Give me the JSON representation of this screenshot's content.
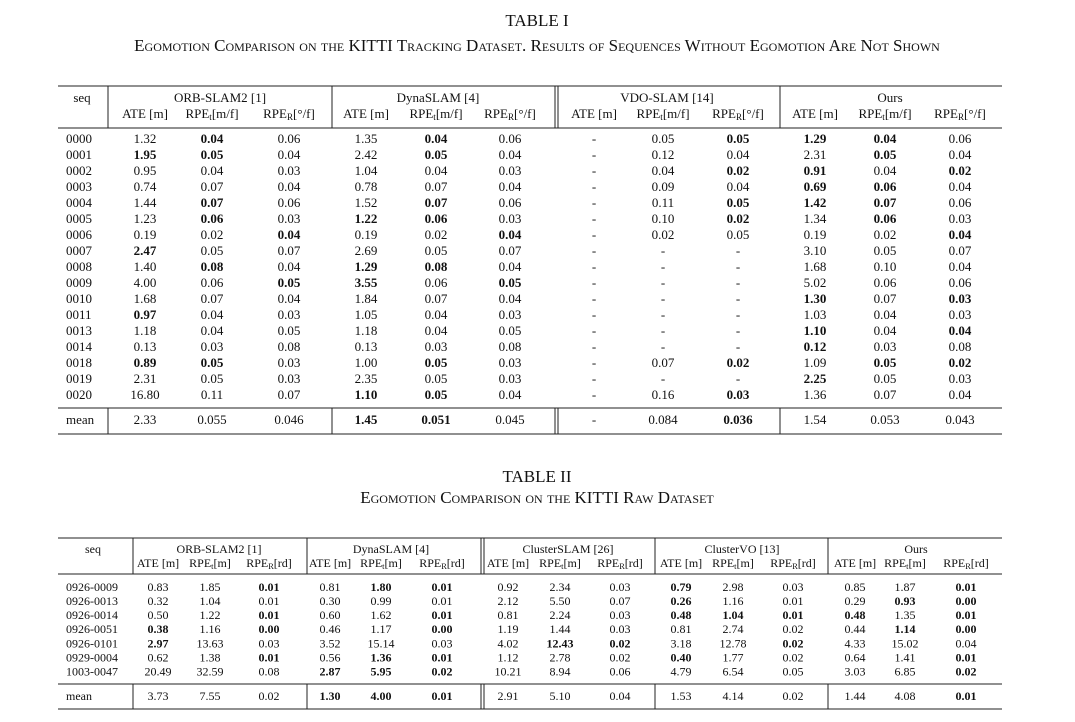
{
  "table1": {
    "label": "TABLE I",
    "caption": "Egomotion Comparison on the KITTI Tracking Dataset. Results of Sequences Without Egomotion Are Not Shown",
    "seq_header": "seq",
    "groups": [
      {
        "name": "ORB-SLAM2 [1]",
        "columns": [
          {
            "text": "ATE [m]"
          },
          {
            "text": "RPE",
            "sub": "t",
            "unit": "[m/f]"
          },
          {
            "text": "RPE",
            "sub": "R",
            "unit": "[°/f]"
          }
        ]
      },
      {
        "name": "DynaSLAM [4]",
        "columns": [
          {
            "text": "ATE [m]"
          },
          {
            "text": "RPE",
            "sub": "t",
            "unit": "[m/f]"
          },
          {
            "text": "RPE",
            "sub": "R",
            "unit": "[°/f]"
          }
        ]
      },
      {
        "name": "VDO-SLAM [14]",
        "columns": [
          {
            "text": "ATE [m]"
          },
          {
            "text": "RPE",
            "sub": "t",
            "unit": "[m/f]"
          },
          {
            "text": "RPE",
            "sub": "R",
            "unit": "[°/f]"
          }
        ]
      },
      {
        "name": "Ours",
        "columns": [
          {
            "text": "ATE [m]"
          },
          {
            "text": "RPE",
            "sub": "t",
            "unit": "[m/f]"
          },
          {
            "text": "RPE",
            "sub": "R",
            "unit": "[°/f]"
          }
        ]
      }
    ],
    "rows": [
      {
        "seq": "0000",
        "cells": [
          "1.32",
          "0.04",
          "0.06",
          "1.35",
          "0.04",
          "0.06",
          "-",
          "0.05",
          "0.05",
          "1.29",
          "0.04",
          "0.06"
        ],
        "bold": [
          1,
          4,
          8,
          9,
          10
        ]
      },
      {
        "seq": "0001",
        "cells": [
          "1.95",
          "0.05",
          "0.04",
          "2.42",
          "0.05",
          "0.04",
          "-",
          "0.12",
          "0.04",
          "2.31",
          "0.05",
          "0.04"
        ],
        "bold": [
          0,
          1,
          4,
          10
        ]
      },
      {
        "seq": "0002",
        "cells": [
          "0.95",
          "0.04",
          "0.03",
          "1.04",
          "0.04",
          "0.03",
          "-",
          "0.04",
          "0.02",
          "0.91",
          "0.04",
          "0.02"
        ],
        "bold": [
          8,
          9,
          11
        ]
      },
      {
        "seq": "0003",
        "cells": [
          "0.74",
          "0.07",
          "0.04",
          "0.78",
          "0.07",
          "0.04",
          "-",
          "0.09",
          "0.04",
          "0.69",
          "0.06",
          "0.04"
        ],
        "bold": [
          9,
          10
        ]
      },
      {
        "seq": "0004",
        "cells": [
          "1.44",
          "0.07",
          "0.06",
          "1.52",
          "0.07",
          "0.06",
          "-",
          "0.11",
          "0.05",
          "1.42",
          "0.07",
          "0.06"
        ],
        "bold": [
          1,
          4,
          8,
          9,
          10
        ]
      },
      {
        "seq": "0005",
        "cells": [
          "1.23",
          "0.06",
          "0.03",
          "1.22",
          "0.06",
          "0.03",
          "-",
          "0.10",
          "0.02",
          "1.34",
          "0.06",
          "0.03"
        ],
        "bold": [
          1,
          3,
          4,
          8,
          10
        ]
      },
      {
        "seq": "0006",
        "cells": [
          "0.19",
          "0.02",
          "0.04",
          "0.19",
          "0.02",
          "0.04",
          "-",
          "0.02",
          "0.05",
          "0.19",
          "0.02",
          "0.04"
        ],
        "bold": [
          2,
          5,
          11
        ]
      },
      {
        "seq": "0007",
        "cells": [
          "2.47",
          "0.05",
          "0.07",
          "2.69",
          "0.05",
          "0.07",
          "-",
          "-",
          "-",
          "3.10",
          "0.05",
          "0.07"
        ],
        "bold": [
          0
        ]
      },
      {
        "seq": "0008",
        "cells": [
          "1.40",
          "0.08",
          "0.04",
          "1.29",
          "0.08",
          "0.04",
          "-",
          "-",
          "-",
          "1.68",
          "0.10",
          "0.04"
        ],
        "bold": [
          1,
          3,
          4
        ]
      },
      {
        "seq": "0009",
        "cells": [
          "4.00",
          "0.06",
          "0.05",
          "3.55",
          "0.06",
          "0.05",
          "-",
          "-",
          "-",
          "5.02",
          "0.06",
          "0.06"
        ],
        "bold": [
          2,
          3,
          5
        ]
      },
      {
        "seq": "0010",
        "cells": [
          "1.68",
          "0.07",
          "0.04",
          "1.84",
          "0.07",
          "0.04",
          "-",
          "-",
          "-",
          "1.30",
          "0.07",
          "0.03"
        ],
        "bold": [
          9,
          11
        ]
      },
      {
        "seq": "0011",
        "cells": [
          "0.97",
          "0.04",
          "0.03",
          "1.05",
          "0.04",
          "0.03",
          "-",
          "-",
          "-",
          "1.03",
          "0.04",
          "0.03"
        ],
        "bold": [
          0
        ]
      },
      {
        "seq": "0013",
        "cells": [
          "1.18",
          "0.04",
          "0.05",
          "1.18",
          "0.04",
          "0.05",
          "-",
          "-",
          "-",
          "1.10",
          "0.04",
          "0.04"
        ],
        "bold": [
          9,
          11
        ]
      },
      {
        "seq": "0014",
        "cells": [
          "0.13",
          "0.03",
          "0.08",
          "0.13",
          "0.03",
          "0.08",
          "-",
          "-",
          "-",
          "0.12",
          "0.03",
          "0.08"
        ],
        "bold": [
          9
        ]
      },
      {
        "seq": "0018",
        "cells": [
          "0.89",
          "0.05",
          "0.03",
          "1.00",
          "0.05",
          "0.03",
          "-",
          "0.07",
          "0.02",
          "1.09",
          "0.05",
          "0.02"
        ],
        "bold": [
          0,
          1,
          4,
          8,
          10,
          11
        ]
      },
      {
        "seq": "0019",
        "cells": [
          "2.31",
          "0.05",
          "0.03",
          "2.35",
          "0.05",
          "0.03",
          "-",
          "-",
          "-",
          "2.25",
          "0.05",
          "0.03"
        ],
        "bold": [
          9
        ]
      },
      {
        "seq": "0020",
        "cells": [
          "16.80",
          "0.11",
          "0.07",
          "1.10",
          "0.05",
          "0.04",
          "-",
          "0.16",
          "0.03",
          "1.36",
          "0.07",
          "0.04"
        ],
        "bold": [
          3,
          4,
          8
        ]
      }
    ],
    "mean": {
      "seq": "mean",
      "cells": [
        "2.33",
        "0.055",
        "0.046",
        "1.45",
        "0.051",
        "0.045",
        "-",
        "0.084",
        "0.036",
        "1.54",
        "0.053",
        "0.043"
      ],
      "bold": [
        3,
        4,
        8
      ]
    }
  },
  "table2": {
    "label": "TABLE II",
    "caption": "Egomotion Comparison on the KITTI Raw Dataset",
    "seq_header": "seq",
    "groups": [
      {
        "name": "ORB-SLAM2 [1]",
        "columns": [
          {
            "text": "ATE [m]"
          },
          {
            "text": "RPE",
            "sub": "t",
            "unit": "[m]"
          },
          {
            "text": "RPE",
            "sub": "R",
            "unit": "[rd]"
          }
        ]
      },
      {
        "name": "DynaSLAM [4]",
        "columns": [
          {
            "text": "ATE [m]"
          },
          {
            "text": "RPE",
            "sub": "t",
            "unit": "[m]"
          },
          {
            "text": "RPE",
            "sub": "R",
            "unit": "[rd]"
          }
        ]
      },
      {
        "name": "ClusterSLAM [26]",
        "columns": [
          {
            "text": "ATE [m]"
          },
          {
            "text": "RPE",
            "sub": "t",
            "unit": "[m]"
          },
          {
            "text": "RPE",
            "sub": "R",
            "unit": "[rd]"
          }
        ]
      },
      {
        "name": "ClusterVO [13]",
        "columns": [
          {
            "text": "ATE [m]"
          },
          {
            "text": "RPE",
            "sub": "t",
            "unit": "[m]"
          },
          {
            "text": "RPE",
            "sub": "R",
            "unit": "[rd]"
          }
        ]
      },
      {
        "name": "Ours",
        "columns": [
          {
            "text": "ATE [m]"
          },
          {
            "text": "RPE",
            "sub": "t",
            "unit": "[m]"
          },
          {
            "text": "RPE",
            "sub": "R",
            "unit": "[rd]"
          }
        ]
      }
    ],
    "rows": [
      {
        "seq": "0926-0009",
        "cells": [
          "0.83",
          "1.85",
          "0.01",
          "0.81",
          "1.80",
          "0.01",
          "0.92",
          "2.34",
          "0.03",
          "0.79",
          "2.98",
          "0.03",
          "0.85",
          "1.87",
          "0.01"
        ],
        "bold": [
          2,
          4,
          5,
          9,
          14
        ]
      },
      {
        "seq": "0926-0013",
        "cells": [
          "0.32",
          "1.04",
          "0.01",
          "0.30",
          "0.99",
          "0.01",
          "2.12",
          "5.50",
          "0.07",
          "0.26",
          "1.16",
          "0.01",
          "0.29",
          "0.93",
          "0.00"
        ],
        "bold": [
          9,
          13,
          14
        ]
      },
      {
        "seq": "0926-0014",
        "cells": [
          "0.50",
          "1.22",
          "0.01",
          "0.60",
          "1.62",
          "0.01",
          "0.81",
          "2.24",
          "0.03",
          "0.48",
          "1.04",
          "0.01",
          "0.48",
          "1.35",
          "0.01"
        ],
        "bold": [
          2,
          5,
          9,
          10,
          11,
          12,
          14
        ]
      },
      {
        "seq": "0926-0051",
        "cells": [
          "0.38",
          "1.16",
          "0.00",
          "0.46",
          "1.17",
          "0.00",
          "1.19",
          "1.44",
          "0.03",
          "0.81",
          "2.74",
          "0.02",
          "0.44",
          "1.14",
          "0.00"
        ],
        "bold": [
          0,
          2,
          5,
          13,
          14
        ]
      },
      {
        "seq": "0926-0101",
        "cells": [
          "2.97",
          "13.63",
          "0.03",
          "3.52",
          "15.14",
          "0.03",
          "4.02",
          "12.43",
          "0.02",
          "3.18",
          "12.78",
          "0.02",
          "4.33",
          "15.02",
          "0.04"
        ],
        "bold": [
          0,
          7,
          8,
          11
        ]
      },
      {
        "seq": "0929-0004",
        "cells": [
          "0.62",
          "1.38",
          "0.01",
          "0.56",
          "1.36",
          "0.01",
          "1.12",
          "2.78",
          "0.02",
          "0.40",
          "1.77",
          "0.02",
          "0.64",
          "1.41",
          "0.01"
        ],
        "bold": [
          2,
          4,
          5,
          9,
          14
        ]
      },
      {
        "seq": "1003-0047",
        "cells": [
          "20.49",
          "32.59",
          "0.08",
          "2.87",
          "5.95",
          "0.02",
          "10.21",
          "8.94",
          "0.06",
          "4.79",
          "6.54",
          "0.05",
          "3.03",
          "6.85",
          "0.02"
        ],
        "bold": [
          3,
          4,
          5,
          14
        ]
      }
    ],
    "mean": {
      "seq": "mean",
      "cells": [
        "3.73",
        "7.55",
        "0.02",
        "1.30",
        "4.00",
        "0.01",
        "2.91",
        "5.10",
        "0.04",
        "1.53",
        "4.14",
        "0.02",
        "1.44",
        "4.08",
        "0.01"
      ],
      "bold": [
        3,
        4,
        5,
        14
      ]
    }
  }
}
